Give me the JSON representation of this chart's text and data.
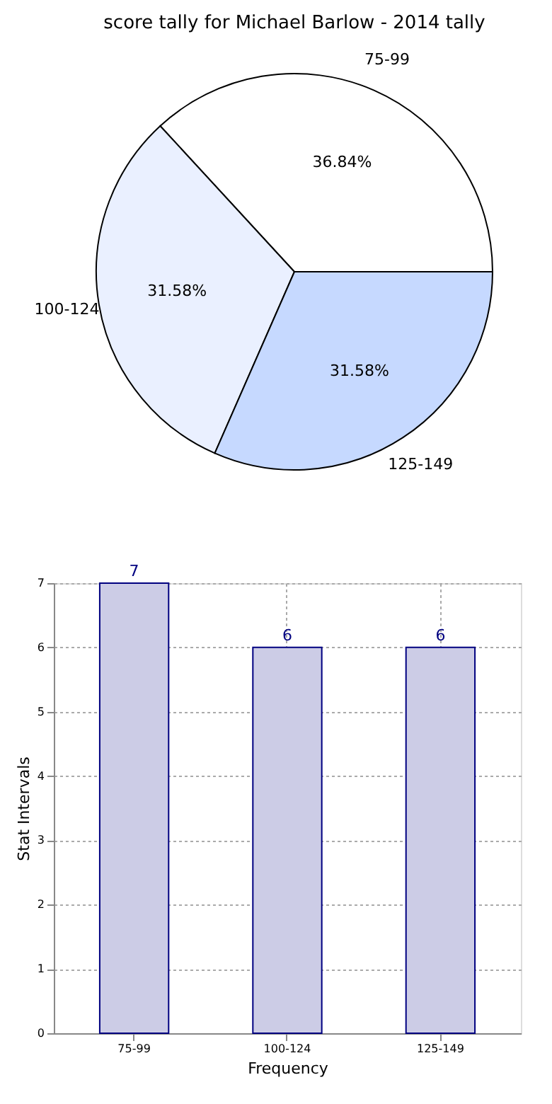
{
  "chart_data": [
    {
      "type": "pie",
      "title": "score tally for Michael Barlow - 2014 tally",
      "categories": [
        "75-99",
        "100-124",
        "125-149"
      ],
      "values": [
        36.84,
        31.58,
        31.58
      ],
      "colors": [
        "#ffffff",
        "#eaf0ff",
        "#c6d9ff"
      ],
      "value_labels": [
        "36.84%",
        "31.58%",
        "31.58%"
      ]
    },
    {
      "type": "bar",
      "categories": [
        "75-99",
        "100-124",
        "125-149"
      ],
      "values": [
        7,
        6,
        6
      ],
      "color": "#cccce6",
      "xlabel": "Frequency",
      "ylabel": "Stat Intervals",
      "ylim": [
        0,
        7
      ],
      "yticks": [
        0,
        1,
        2,
        3,
        4,
        5,
        6,
        7
      ],
      "grid": true,
      "data_labels": true
    }
  ]
}
